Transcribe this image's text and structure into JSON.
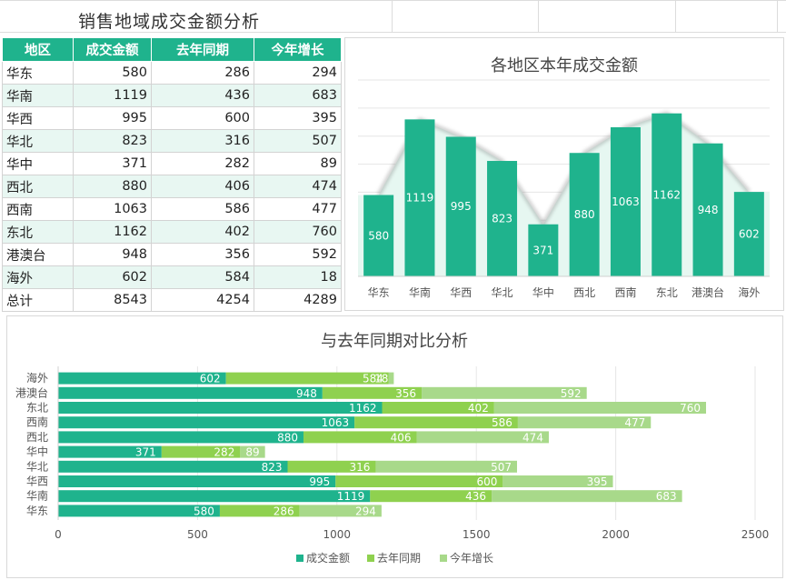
{
  "sheet_title": "销售地域成交金额分析",
  "table": {
    "headers": [
      "地区",
      "成交金额",
      "去年同期",
      "今年增长"
    ],
    "rows": [
      [
        "华东",
        "580",
        "286",
        "294"
      ],
      [
        "华南",
        "1119",
        "436",
        "683"
      ],
      [
        "华西",
        "995",
        "600",
        "395"
      ],
      [
        "华北",
        "823",
        "316",
        "507"
      ],
      [
        "华中",
        "371",
        "282",
        "89"
      ],
      [
        "西北",
        "880",
        "406",
        "474"
      ],
      [
        "西南",
        "1063",
        "586",
        "477"
      ],
      [
        "东北",
        "1162",
        "402",
        "760"
      ],
      [
        "港澳台",
        "948",
        "356",
        "592"
      ],
      [
        "海外",
        "602",
        "584",
        "18"
      ]
    ],
    "total": [
      "总计",
      "8543",
      "4254",
      "4289"
    ]
  },
  "colors": {
    "header": "#1fb38d",
    "series1": "#1fb38d",
    "series2": "#8fd14f",
    "series3": "#a8d98a",
    "area": "#e6f7f1"
  },
  "chart_data": [
    {
      "type": "bar",
      "title": "各地区本年成交金额",
      "categories": [
        "华东",
        "华南",
        "华西",
        "华北",
        "华中",
        "西北",
        "西南",
        "东北",
        "港澳台",
        "海外"
      ],
      "values": [
        580,
        1119,
        995,
        823,
        371,
        880,
        1063,
        1162,
        948,
        602
      ],
      "ylim": [
        0,
        1400
      ],
      "grid": true
    },
    {
      "type": "bar",
      "orientation": "horizontal-stacked",
      "title": "与去年同期对比分析",
      "categories": [
        "华东",
        "华南",
        "华西",
        "华北",
        "华中",
        "西北",
        "西南",
        "东北",
        "港澳台",
        "海外"
      ],
      "series": [
        {
          "name": "成交金额",
          "values": [
            580,
            1119,
            995,
            823,
            371,
            880,
            1063,
            1162,
            948,
            602
          ]
        },
        {
          "name": "去年同期",
          "values": [
            286,
            436,
            600,
            316,
            282,
            406,
            586,
            402,
            356,
            584
          ]
        },
        {
          "name": "今年增长",
          "values": [
            294,
            683,
            395,
            507,
            89,
            474,
            477,
            760,
            592,
            18
          ]
        }
      ],
      "xlim": [
        0,
        2500
      ],
      "xticks": [
        0,
        500,
        1000,
        1500,
        2000,
        2500
      ],
      "legend": "bottom"
    }
  ]
}
